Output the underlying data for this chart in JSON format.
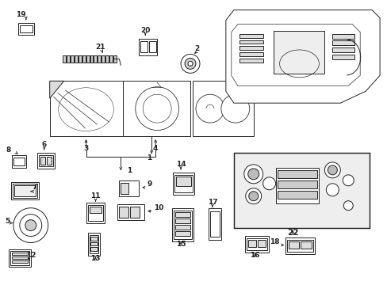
{
  "bg_color": "#ffffff",
  "fig_width": 4.89,
  "fig_height": 3.6,
  "dpi": 100,
  "line_color": "#222222",
  "label_color": "#000000",
  "box_bg": "#e8e8e8",
  "lw": 0.7,
  "fs": 6.5
}
